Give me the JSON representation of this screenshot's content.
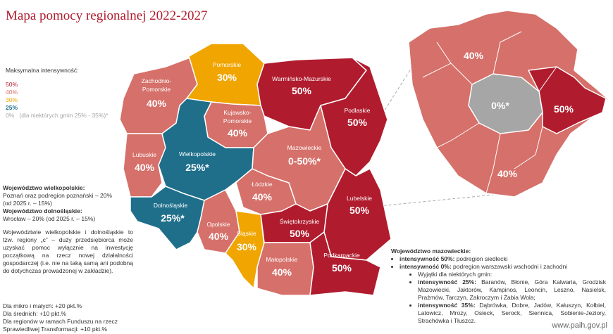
{
  "title": "Mapa pomocy regionalnej 2022-2027",
  "legend": {
    "heading": "Maksymalna intensywność:",
    "items": [
      {
        "label": "50%"
      },
      {
        "label": "40%"
      },
      {
        "label": "30%"
      },
      {
        "label": "25%"
      },
      {
        "label": "0%",
        "note": "(dla niektórych gmin 25% - 35%)*"
      }
    ]
  },
  "left_notes": {
    "wielkopolskie_heading": "Województwo wielkopolskie:",
    "wielkopolskie_lines": [
      "Poznań oraz podregion poznański – 20%",
      "(od 2025 r. – 15%)"
    ],
    "dolnoslaskie_heading": "Województwo dolnośląskie:",
    "dolnoslaskie_lines": [
      "Wrocław – 20% (od 2025 r. – 15%)"
    ],
    "paragraph": "Województwie wielkopolskie i dolnośląskie to tzw. regiony „c” – duży przedsiębiorca może uzyskać pomoc wyłącznie na inwestycję początkową na rzecz nowej działalności gospodarczej (i.e. nie na taką samą ani podobną do dotychczas prowadzonej w zakładzie)."
  },
  "bonus": [
    "Dla mikro i małych: +20 pkt.%",
    "Dla średnich: +10 pkt.%",
    "Dla regionów w ramach Funduszu na rzecz",
    "Sprawiedliwej Transformacji: +10 pkt.%"
  ],
  "regions": [
    {
      "name": "Zachodnio-",
      "name2": "Pomorskie",
      "value": "40%"
    },
    {
      "name": "Pomorskie",
      "value": "30%"
    },
    {
      "name": "Warmińsko-Mazurskie",
      "value": "50%"
    },
    {
      "name": "Podlaskie",
      "value": "50%"
    },
    {
      "name": "Kujawsko-",
      "name2": "Pomorskie",
      "value": "40%"
    },
    {
      "name": "Lubuskie",
      "value": "40%"
    },
    {
      "name": "Wielkopolskie",
      "value": "25%*"
    },
    {
      "name": "Mazowieckie",
      "value": "0-50%*"
    },
    {
      "name": "Łódzkie",
      "value": "40%"
    },
    {
      "name": "Lubelskie",
      "value": "50%"
    },
    {
      "name": "Dolnośląskie",
      "value": "25%*"
    },
    {
      "name": "Opolskie",
      "value": "40%"
    },
    {
      "name": "Śląskie",
      "value": "30%"
    },
    {
      "name": "Świętokrzyskie",
      "value": "50%"
    },
    {
      "name": "Małopolskie",
      "value": "40%"
    },
    {
      "name": "Podkarpackie",
      "value": "50%"
    }
  ],
  "inset_labels": [
    "40%",
    "0%*",
    "50%",
    "40%"
  ],
  "mazowieckie_notes": {
    "heading": "Województwo mazowieckie:",
    "bullets": [
      {
        "label": "intensywność 50%:",
        "text": " podregion siedlecki"
      },
      {
        "label": "intensywność 0%:",
        "text": " podregion warszawski wschodni i zachodni"
      }
    ],
    "sub_heading": "Wyjątki dla niektórych gmin:",
    "sub_bullets": [
      {
        "label": "intensywność 25%:",
        "text": " Baranów, Błonie, Góra Kalwaria, Grodzisk Mazowiecki, Jaktorów, Kampinos, Leoncin, Leszno, Nasielsk, Prażmów, Tarczyn, Zakroczym i Żabia Wola;"
      },
      {
        "label": "intensywność 35%:",
        "text": " Dąbrówka, Dobre, Jadów, Kałuszyn, Kołbiel, Latowicz, Mrozy, Osieck, Serock, Siennica, Sobienie-Jeziory, Strachówka i Tłuszcz."
      }
    ]
  },
  "footer": "www.paih.gov.pl"
}
